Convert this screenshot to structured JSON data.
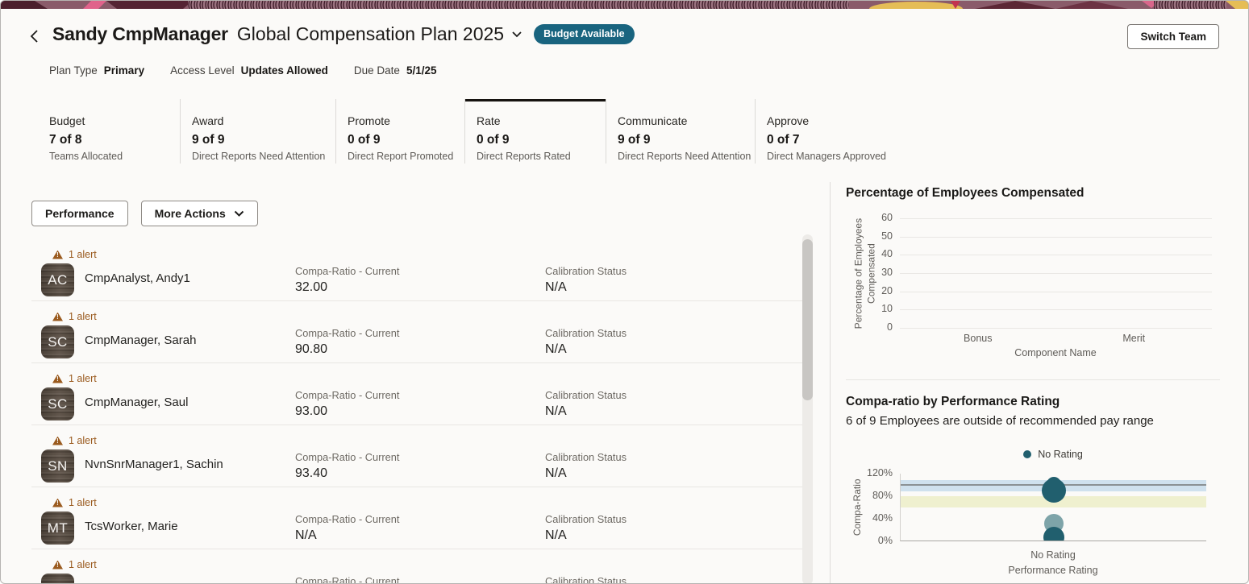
{
  "header": {
    "manager_name": "Sandy CmpManager",
    "plan_name": "Global Compensation Plan 2025",
    "status_badge": "Budget Available",
    "switch_team_label": "Switch Team"
  },
  "meta": {
    "items": [
      {
        "label": "Plan Type",
        "value": "Primary"
      },
      {
        "label": "Access Level",
        "value": "Updates Allowed"
      },
      {
        "label": "Due Date",
        "value": "5/1/25"
      }
    ]
  },
  "tasks": {
    "steps": [
      {
        "label": "Budget",
        "value": "7 of 8",
        "sub": "Teams Allocated",
        "selected": false
      },
      {
        "label": "Award",
        "value": "9 of 9",
        "sub": "Direct Reports Need Attention",
        "selected": false
      },
      {
        "label": "Promote",
        "value": "0 of 9",
        "sub": "Direct Report Promoted",
        "selected": false
      },
      {
        "label": "Rate",
        "value": "0 of 9",
        "sub": "Direct Reports Rated",
        "selected": true
      },
      {
        "label": "Communicate",
        "value": "9 of 9",
        "sub": "Direct Reports Need Attention",
        "selected": false
      },
      {
        "label": "Approve",
        "value": "0 of 7",
        "sub": "Direct Managers Approved",
        "selected": false
      }
    ]
  },
  "toolbar": {
    "performance_label": "Performance",
    "more_actions_label": "More Actions"
  },
  "employee_list": {
    "alert_label": "1 alert",
    "compa_label": "Compa-Ratio - Current",
    "calibration_label": "Calibration Status",
    "rows": [
      {
        "initials": "AC",
        "name": "CmpAnalyst, Andy1",
        "compa": "32.00",
        "calibration": "N/A",
        "partial": false
      },
      {
        "initials": "SC",
        "name": "CmpManager, Sarah",
        "compa": "90.80",
        "calibration": "N/A",
        "partial": false
      },
      {
        "initials": "SC",
        "name": "CmpManager, Saul",
        "compa": "93.00",
        "calibration": "N/A",
        "partial": false
      },
      {
        "initials": "SN",
        "name": "NvnSnrManager1, Sachin",
        "compa": "93.40",
        "calibration": "N/A",
        "partial": false
      },
      {
        "initials": "MT",
        "name": "TcsWorker, Marie",
        "compa": "N/A",
        "calibration": "N/A",
        "partial": false
      },
      {
        "initials": "",
        "name": "",
        "compa": "",
        "calibration": "",
        "partial": true
      }
    ]
  },
  "colors": {
    "badge_teal": "#19647f",
    "alert_orange": "#9a5a1e",
    "bubble_dark": "#215f6e",
    "bubble_light": "#7ea4a9",
    "band_blue": "#cfe1ee",
    "band_yellow": "#eff0cf",
    "refline_gray": "#8a9194"
  },
  "chart_data": [
    {
      "type": "bar",
      "title": "Percentage of Employees Compensated",
      "categories": [
        "Bonus",
        "Merit"
      ],
      "values": [
        0,
        0
      ],
      "xlabel": "Component Name",
      "ylabel": "Percentage of Employees Compensated",
      "ylim": [
        0,
        60
      ],
      "yticks": [
        0,
        10,
        20,
        30,
        40,
        50,
        60
      ],
      "grid": true,
      "legend_position": "none"
    },
    {
      "type": "scatter",
      "title": "Compa-ratio by Performance Rating",
      "subtitle": "6 of 9 Employees are outside of recommended pay range",
      "xlabel": "Performance Rating",
      "ylabel": "Compa-Ratio",
      "categories": [
        "No Rating"
      ],
      "ylim": [
        0,
        120
      ],
      "yticks": [
        "0%",
        "40%",
        "80%",
        "120%"
      ],
      "legend": [
        {
          "label": "No Rating",
          "color": "#215f6e"
        }
      ],
      "legend_position": "top-center",
      "bands": [
        {
          "from": 88,
          "to": 108,
          "color": "#cfe1ee"
        },
        {
          "from": 60,
          "to": 80,
          "color": "#eff0cf"
        }
      ],
      "reference_line": {
        "value": 100,
        "color": "#8a9194"
      },
      "points": [
        {
          "category": "No Rating",
          "value": 102,
          "radius": 9,
          "color": "#215f6e"
        },
        {
          "category": "No Rating",
          "value": 90,
          "radius": 15,
          "color": "#215f6e"
        },
        {
          "category": "No Rating",
          "value": 31,
          "radius": 12,
          "color": "#7ea4a9"
        },
        {
          "category": "No Rating",
          "value": 7,
          "radius": 13,
          "color": "#215f6e"
        }
      ]
    }
  ]
}
